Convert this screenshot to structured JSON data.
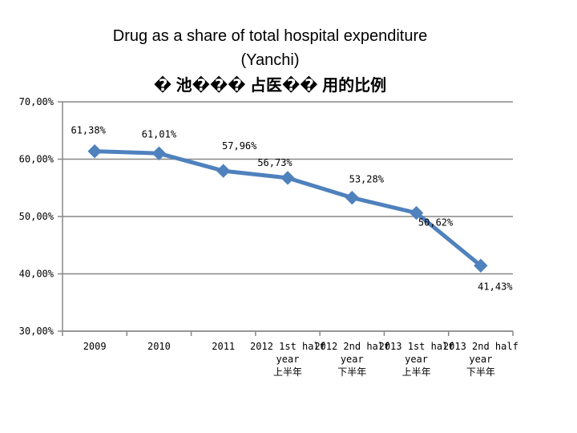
{
  "chart_data": {
    "type": "line",
    "title": "Drug as a share of total hospital expenditure",
    "subtitle": "(Yanchi)",
    "subtitle_cn": "� 池��� 占医�� 用的比例",
    "xlabel": "",
    "ylabel": "",
    "ylim": [
      30,
      70
    ],
    "yticks": [
      30,
      40,
      50,
      60,
      70
    ],
    "ytick_labels": [
      "30,00%",
      "40,00%",
      "50,00%",
      "60,00%",
      "70,00%"
    ],
    "categories": [
      [
        "2009"
      ],
      [
        "2010"
      ],
      [
        "2011"
      ],
      [
        "2012 1st half",
        "year",
        "上半年"
      ],
      [
        "2012 2nd half",
        "year",
        "下半年"
      ],
      [
        "2013 1st half",
        "year",
        "上半年"
      ],
      [
        "2013 2nd half",
        "year",
        "下半年"
      ]
    ],
    "series": [
      {
        "values": [
          61.38,
          61.01,
          57.96,
          56.73,
          53.28,
          50.62,
          41.43
        ],
        "labels": [
          "61,38%",
          "61,01%",
          "57,96%",
          "56,73%",
          "53,28%",
          "50,62%",
          "41,43%"
        ]
      }
    ],
    "grid": true,
    "color": "#4f81bd",
    "gridline_color": "#878787"
  }
}
